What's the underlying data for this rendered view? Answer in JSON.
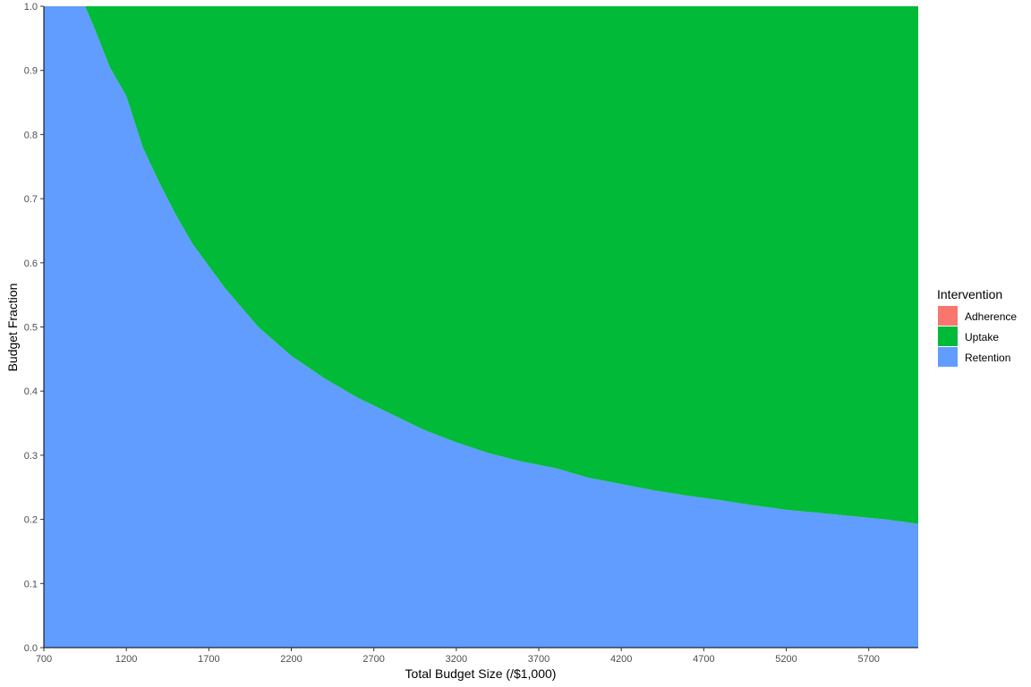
{
  "chart_data": {
    "type": "area",
    "stacked": true,
    "normalized": true,
    "xlabel": "Total Budget Size (/$1,000)",
    "ylabel": "Budget Fraction",
    "xlim": [
      700,
      6000
    ],
    "ylim": [
      0,
      1
    ],
    "x_ticks": [
      "700",
      "1200",
      "1700",
      "2200",
      "2700",
      "3200",
      "3700",
      "4200",
      "4700",
      "5200",
      "5700"
    ],
    "y_ticks": [
      "0.0",
      "0.1",
      "0.2",
      "0.3",
      "0.4",
      "0.5",
      "0.6",
      "0.7",
      "0.8",
      "0.9",
      "1.0"
    ],
    "grid": false,
    "legend": {
      "title": "Intervention",
      "position": "right",
      "entries": [
        {
          "label": "Adherence",
          "color": "#F8766D"
        },
        {
          "label": "Uptake",
          "color": "#00BA38"
        },
        {
          "label": "Retention",
          "color": "#619CFF"
        }
      ]
    },
    "x": [
      700,
      800,
      900,
      950,
      1000,
      1100,
      1200,
      1300,
      1400,
      1500,
      1600,
      1700,
      1800,
      1900,
      2000,
      2200,
      2400,
      2600,
      2800,
      3000,
      3200,
      3400,
      3600,
      3800,
      4000,
      4200,
      4400,
      4600,
      4800,
      5000,
      5200,
      5400,
      5600,
      5800,
      6000
    ],
    "series": [
      {
        "name": "Adherence",
        "color": "#F8766D",
        "values": [
          0,
          0,
          0,
          0,
          0,
          0,
          0,
          0,
          0,
          0,
          0,
          0,
          0,
          0,
          0,
          0,
          0,
          0,
          0,
          0,
          0,
          0,
          0,
          0,
          0,
          0,
          0,
          0,
          0,
          0,
          0,
          0,
          0,
          0,
          0
        ]
      },
      {
        "name": "Retention",
        "color": "#619CFF",
        "values": [
          1.0,
          1.0,
          1.0,
          1.0,
          0.97,
          0.905,
          0.86,
          0.78,
          0.725,
          0.675,
          0.63,
          0.595,
          0.56,
          0.53,
          0.5,
          0.455,
          0.42,
          0.39,
          0.365,
          0.34,
          0.32,
          0.303,
          0.29,
          0.28,
          0.265,
          0.255,
          0.245,
          0.237,
          0.23,
          0.222,
          0.215,
          0.21,
          0.205,
          0.2,
          0.193
        ]
      },
      {
        "name": "Uptake",
        "color": "#00BA38",
        "values": [
          0.0,
          0.0,
          0.0,
          0.0,
          0.03,
          0.095,
          0.14,
          0.22,
          0.275,
          0.325,
          0.37,
          0.405,
          0.44,
          0.47,
          0.5,
          0.545,
          0.58,
          0.61,
          0.635,
          0.66,
          0.68,
          0.697,
          0.71,
          0.72,
          0.735,
          0.745,
          0.755,
          0.763,
          0.77,
          0.778,
          0.785,
          0.79,
          0.795,
          0.8,
          0.807
        ]
      }
    ]
  }
}
